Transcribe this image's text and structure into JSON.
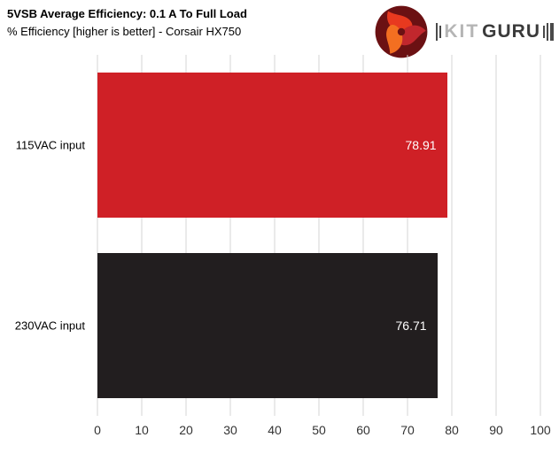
{
  "header": {
    "title": "5VSB Average Efficiency: 0.1 A To Full Load",
    "subtitle": "% Efficiency [higher is better] - Corsair HX750"
  },
  "logo": {
    "kit": "KIT",
    "guru": "GURU"
  },
  "chart_data": {
    "type": "bar",
    "orientation": "horizontal",
    "title": "5VSB Average Efficiency: 0.1 A To Full Load",
    "subtitle": "% Efficiency [higher is better] - Corsair HX750",
    "categories": [
      "115VAC input",
      "230VAC input"
    ],
    "values": [
      78.91,
      76.71
    ],
    "value_labels": [
      "78.91",
      "76.71"
    ],
    "bar_colors": [
      "#cf2026",
      "#221e1f"
    ],
    "xlabel": "",
    "ylabel": "",
    "xlim": [
      0,
      100
    ],
    "xticks": [
      0,
      10,
      20,
      30,
      40,
      50,
      60,
      70,
      80,
      90,
      100
    ],
    "grid": true,
    "legend": "none"
  }
}
